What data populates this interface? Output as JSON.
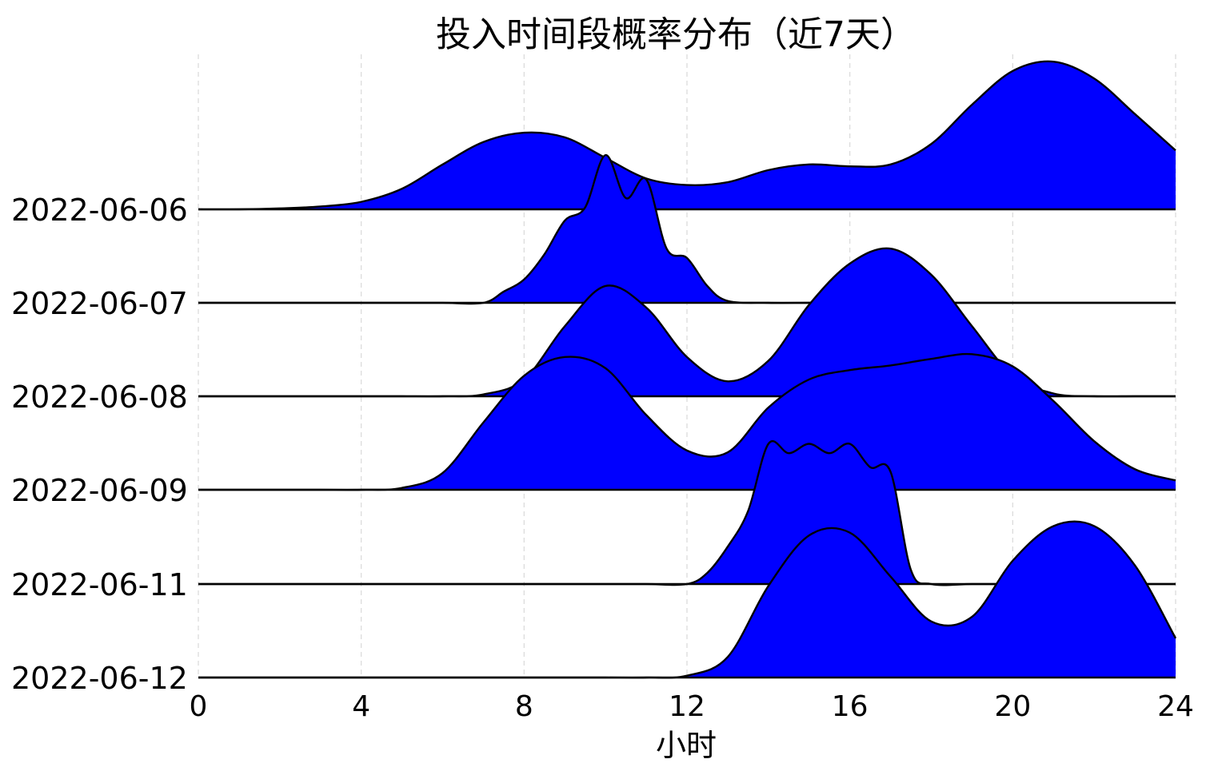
{
  "chart_data": {
    "type": "area",
    "title": "投入时间段概率分布（近7天）",
    "xlabel": "小时",
    "ylabel": "",
    "xlim": [
      0,
      24
    ],
    "x_ticks": [
      "0",
      "4",
      "8",
      "12",
      "16",
      "20",
      "24"
    ],
    "grid": "vertical dashed",
    "colors": {
      "fill": "#0000ff",
      "line": "#000000"
    },
    "series": [
      {
        "name": "2022-06-06",
        "x": [
          0,
          1,
          2,
          3,
          4,
          5,
          6,
          7,
          8,
          9,
          10,
          11,
          12,
          13,
          14,
          15,
          16,
          17,
          18,
          19,
          20,
          21,
          22,
          23,
          24
        ],
        "values": [
          0.0,
          0.0,
          0.01,
          0.03,
          0.08,
          0.22,
          0.48,
          0.72,
          0.82,
          0.77,
          0.55,
          0.33,
          0.26,
          0.29,
          0.42,
          0.48,
          0.46,
          0.48,
          0.7,
          1.12,
          1.48,
          1.58,
          1.4,
          1.02,
          0.63
        ]
      },
      {
        "name": "2022-06-07",
        "x": [
          0,
          1,
          2,
          3,
          4,
          5,
          6,
          7,
          7.5,
          8,
          8.5,
          9,
          9.5,
          10,
          10.5,
          11,
          11.5,
          12,
          12.5,
          13,
          14,
          15,
          16,
          17,
          18,
          19,
          20,
          21,
          22,
          23,
          24
        ],
        "values": [
          0,
          0,
          0,
          0,
          0,
          0,
          0,
          0,
          0.12,
          0.25,
          0.52,
          0.88,
          1.02,
          1.58,
          1.12,
          1.32,
          0.58,
          0.48,
          0.18,
          0.02,
          0,
          0,
          0,
          0,
          0,
          0,
          0,
          0,
          0,
          0,
          0
        ]
      },
      {
        "name": "2022-06-08",
        "x": [
          0,
          1,
          2,
          3,
          4,
          5,
          6,
          7,
          8,
          9,
          10,
          11,
          12,
          13,
          14,
          15,
          16,
          17,
          18,
          19,
          20,
          21,
          22,
          23,
          24
        ],
        "values": [
          0,
          0,
          0,
          0,
          0,
          0,
          0,
          0.02,
          0.18,
          0.75,
          1.18,
          0.95,
          0.42,
          0.16,
          0.38,
          0.98,
          1.42,
          1.58,
          1.3,
          0.75,
          0.22,
          0.03,
          0,
          0,
          0
        ]
      },
      {
        "name": "2022-06-09",
        "x": [
          0,
          1,
          2,
          3,
          4,
          5,
          6,
          7,
          8,
          9,
          10,
          11,
          12,
          13,
          14,
          15,
          16,
          17,
          18,
          19,
          20,
          21,
          22,
          23,
          24
        ],
        "values": [
          0,
          0,
          0,
          0,
          0,
          0.02,
          0.18,
          0.72,
          1.22,
          1.42,
          1.3,
          0.8,
          0.42,
          0.4,
          0.88,
          1.18,
          1.28,
          1.33,
          1.4,
          1.45,
          1.32,
          0.95,
          0.52,
          0.22,
          0.1
        ]
      },
      {
        "name": "2022-06-11",
        "x": [
          0,
          1,
          2,
          3,
          4,
          5,
          6,
          7,
          8,
          9,
          10,
          11,
          12,
          12.5,
          13,
          13.5,
          14,
          14.5,
          15,
          15.5,
          16,
          16.5,
          17,
          17.5,
          18,
          19,
          20,
          21,
          22,
          23,
          24
        ],
        "values": [
          0,
          0,
          0,
          0,
          0,
          0,
          0,
          0,
          0,
          0,
          0,
          0,
          0,
          0.12,
          0.4,
          0.78,
          1.5,
          1.4,
          1.5,
          1.4,
          1.5,
          1.25,
          1.2,
          0.15,
          0,
          0,
          0,
          0,
          0,
          0,
          0
        ]
      },
      {
        "name": "2022-06-12",
        "x": [
          0,
          1,
          2,
          3,
          4,
          5,
          6,
          7,
          8,
          9,
          10,
          11,
          12,
          13,
          14,
          15,
          16,
          17,
          18,
          19,
          20,
          21,
          22,
          23,
          24
        ],
        "values": [
          0,
          0,
          0,
          0,
          0,
          0,
          0,
          0,
          0,
          0,
          0,
          0,
          0.02,
          0.22,
          0.98,
          1.52,
          1.55,
          1.08,
          0.6,
          0.65,
          1.25,
          1.62,
          1.62,
          1.2,
          0.42
        ]
      }
    ]
  }
}
